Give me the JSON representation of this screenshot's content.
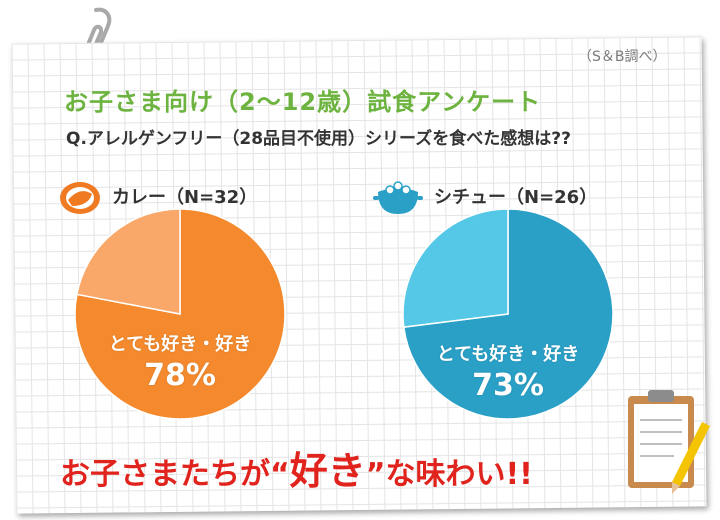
{
  "source": "（S＆B調べ）",
  "title": "お子さま向け（2～12歳）試食アンケート",
  "question": "Q.アレルゲンフリー（28品目不使用）シリーズを食べた感想は??",
  "tagline": {
    "prefix": "お子さまたちが",
    "open_quote": "“",
    "emphasis": "好き",
    "close_quote": "”",
    "suffix": "な味わい!!"
  },
  "colors": {
    "curry_main": "#f48a2d",
    "curry_rest": "#f9a86a",
    "stew_main": "#2aa0c7",
    "stew_rest": "#55c8e8",
    "title_green": "#6db33f",
    "tagline_red": "#e0231c"
  },
  "icons": {
    "curry": "curry-plate-icon",
    "stew": "stew-pot-icon",
    "decor": [
      "paperclip-icon",
      "clipboard-icon",
      "pencil-icon"
    ]
  },
  "chart_data": [
    {
      "type": "pie",
      "title": "カレー（N=32）",
      "slices": [
        {
          "label": "とても好き・好き",
          "value": 78,
          "display": "78%"
        },
        {
          "label": "",
          "value": 22
        }
      ]
    },
    {
      "type": "pie",
      "title": "シチュー（N=26）",
      "slices": [
        {
          "label": "とても好き・好き",
          "value": 73,
          "display": "73%"
        },
        {
          "label": "",
          "value": 27
        }
      ]
    }
  ]
}
